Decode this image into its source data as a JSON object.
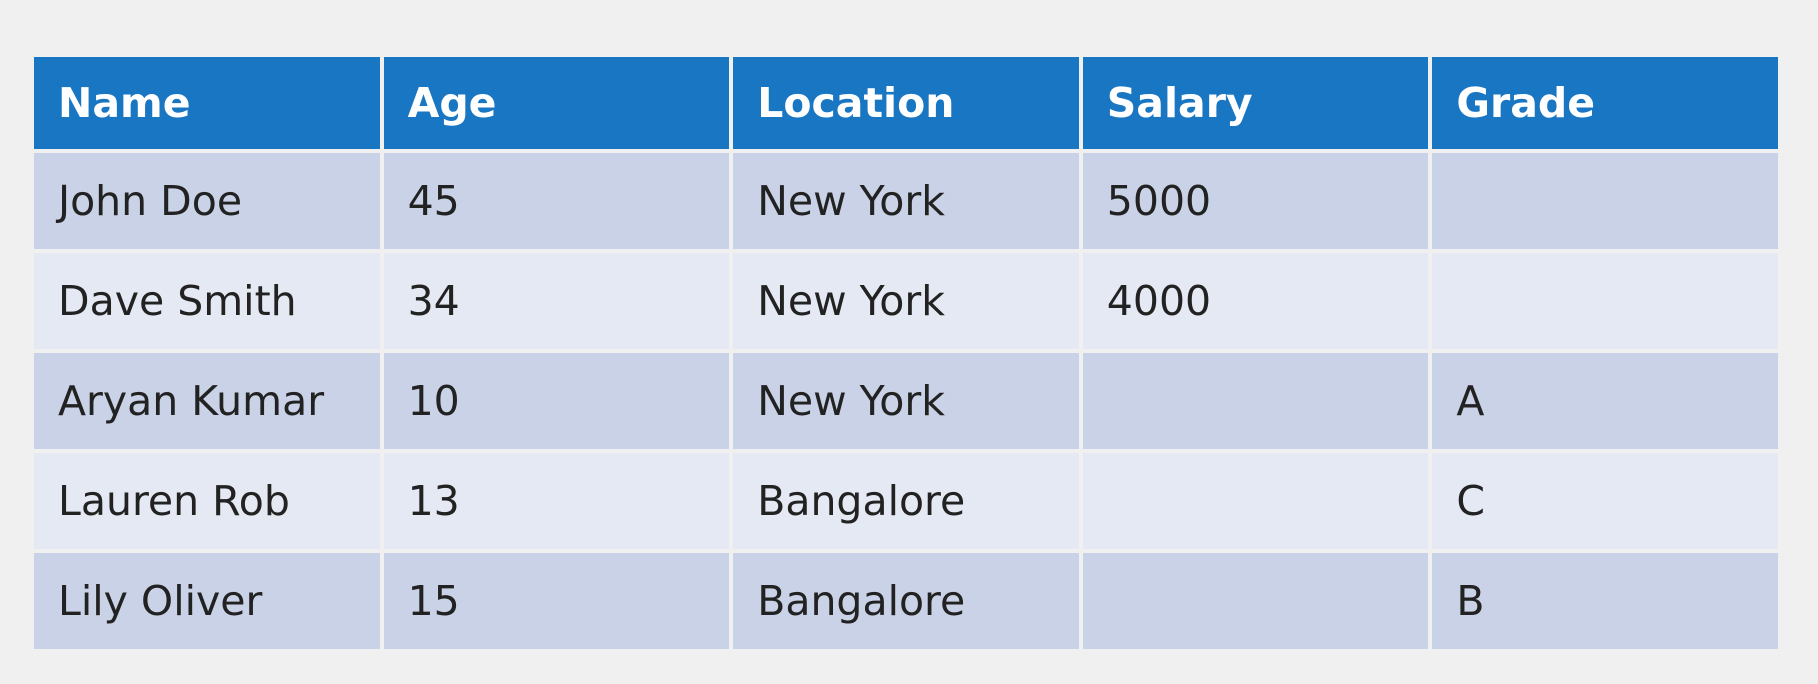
{
  "table": {
    "columns": [
      "Name",
      "Age",
      "Location",
      "Salary",
      "Grade"
    ],
    "rows": [
      [
        "John Doe",
        "45",
        "New York",
        "5000",
        ""
      ],
      [
        "Dave Smith",
        "34",
        "New York",
        "4000",
        ""
      ],
      [
        "Aryan Kumar",
        "10",
        "New York",
        "",
        "A"
      ],
      [
        "Lauren Rob",
        "13",
        "Bangalore",
        "",
        "C"
      ],
      [
        "Lily Oliver",
        "15",
        "Bangalore",
        "",
        "B"
      ]
    ]
  },
  "colors": {
    "header_bg": "#1976c3",
    "row_odd_bg": "#c9d2e6",
    "row_even_bg": "#e5e9f4",
    "page_bg": "#f0f0f0"
  }
}
